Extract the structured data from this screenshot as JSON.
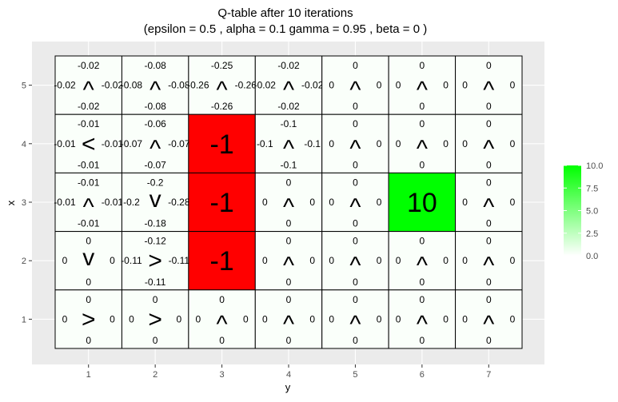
{
  "chart_data": {
    "type": "heatmap",
    "title_line1": "Q-table after  10  iterations",
    "title_line2": "(epsilon =  0.5 , alpha =  0.1 gamma =  0.95 , beta =  0 )",
    "xlabel": "y",
    "ylabel": "x",
    "x_ticks": [
      "1",
      "2",
      "3",
      "4",
      "5",
      "6",
      "7"
    ],
    "y_ticks": [
      "1",
      "2",
      "3",
      "4",
      "5"
    ],
    "legend": {
      "ticks": [
        "10.0",
        "7.5",
        "5.0",
        "2.5",
        "0.0"
      ],
      "range": [
        0,
        10
      ],
      "low_color": "#ffffff",
      "high_color": "#00ff00"
    },
    "negative_color": "#ff0000",
    "cells": [
      {
        "x": 5,
        "y": 1,
        "up": "-0.02",
        "down": "-0.02",
        "left": "-0.02",
        "right": "-0.02",
        "arrow": "^"
      },
      {
        "x": 5,
        "y": 2,
        "up": "-0.08",
        "down": "-0.08",
        "left": "-0.08",
        "right": "-0.08",
        "arrow": "^"
      },
      {
        "x": 5,
        "y": 3,
        "up": "-0.25",
        "down": "-0.26",
        "left": "-0.26",
        "right": "-0.26",
        "arrow": "^"
      },
      {
        "x": 5,
        "y": 4,
        "up": "-0.02",
        "down": "-0.02",
        "left": "-0.02",
        "right": "-0.02",
        "arrow": "^"
      },
      {
        "x": 5,
        "y": 5,
        "up": "0",
        "down": "0",
        "left": "0",
        "right": "0",
        "arrow": "^"
      },
      {
        "x": 5,
        "y": 6,
        "up": "0",
        "down": "0",
        "left": "0",
        "right": "0",
        "arrow": "^"
      },
      {
        "x": 5,
        "y": 7,
        "up": "0",
        "down": "0",
        "left": "0",
        "right": "0",
        "arrow": "^"
      },
      {
        "x": 4,
        "y": 1,
        "up": "-0.01",
        "down": "-0.01",
        "left": "-0.01",
        "right": "-0.01",
        "arrow": "<"
      },
      {
        "x": 4,
        "y": 2,
        "up": "-0.06",
        "down": "-0.07",
        "left": "-0.07",
        "right": "-0.07",
        "arrow": "^"
      },
      {
        "x": 4,
        "y": 3,
        "value": "-1"
      },
      {
        "x": 4,
        "y": 4,
        "up": "-0.1",
        "down": "-0.1",
        "left": "-0.1",
        "right": "-0.1",
        "arrow": "^"
      },
      {
        "x": 4,
        "y": 5,
        "up": "0",
        "down": "0",
        "left": "0",
        "right": "0",
        "arrow": "^"
      },
      {
        "x": 4,
        "y": 6,
        "up": "0",
        "down": "0",
        "left": "0",
        "right": "0",
        "arrow": "^"
      },
      {
        "x": 4,
        "y": 7,
        "up": "0",
        "down": "0",
        "left": "0",
        "right": "0",
        "arrow": "^"
      },
      {
        "x": 3,
        "y": 1,
        "up": "-0.01",
        "down": "-0.01",
        "left": "-0.01",
        "right": "-0.01",
        "arrow": "^"
      },
      {
        "x": 3,
        "y": 2,
        "up": "-0.2",
        "down": "-0.18",
        "left": "-0.2",
        "right": "-0.28",
        "arrow": "v"
      },
      {
        "x": 3,
        "y": 3,
        "value": "-1"
      },
      {
        "x": 3,
        "y": 4,
        "up": "0",
        "down": "0",
        "left": "0",
        "right": "0",
        "arrow": "^"
      },
      {
        "x": 3,
        "y": 5,
        "up": "0",
        "down": "0",
        "left": "0",
        "right": "0",
        "arrow": "^"
      },
      {
        "x": 3,
        "y": 6,
        "value": "10"
      },
      {
        "x": 3,
        "y": 7,
        "up": "0",
        "down": "0",
        "left": "0",
        "right": "0",
        "arrow": "^"
      },
      {
        "x": 2,
        "y": 1,
        "up": "0",
        "down": "0",
        "left": "0",
        "right": "0",
        "arrow": "v"
      },
      {
        "x": 2,
        "y": 2,
        "up": "-0.12",
        "down": "-0.11",
        "left": "-0.11",
        "right": "-0.11",
        "arrow": ">"
      },
      {
        "x": 2,
        "y": 3,
        "value": "-1"
      },
      {
        "x": 2,
        "y": 4,
        "up": "0",
        "down": "0",
        "left": "0",
        "right": "0",
        "arrow": "^"
      },
      {
        "x": 2,
        "y": 5,
        "up": "0",
        "down": "0",
        "left": "0",
        "right": "0",
        "arrow": "^"
      },
      {
        "x": 2,
        "y": 6,
        "up": "0",
        "down": "0",
        "left": "0",
        "right": "0",
        "arrow": "^"
      },
      {
        "x": 2,
        "y": 7,
        "up": "0",
        "down": "0",
        "left": "0",
        "right": "0",
        "arrow": "^"
      },
      {
        "x": 1,
        "y": 1,
        "up": "0",
        "down": "0",
        "left": "0",
        "right": "0",
        "arrow": ">"
      },
      {
        "x": 1,
        "y": 2,
        "up": "0",
        "down": "0",
        "left": "0",
        "right": "0",
        "arrow": ">"
      },
      {
        "x": 1,
        "y": 3,
        "up": "0",
        "down": "0",
        "left": "0",
        "right": "0",
        "arrow": "^"
      },
      {
        "x": 1,
        "y": 4,
        "up": "0",
        "down": "0",
        "left": "0",
        "right": "0",
        "arrow": "^"
      },
      {
        "x": 1,
        "y": 5,
        "up": "0",
        "down": "0",
        "left": "0",
        "right": "0",
        "arrow": "^"
      },
      {
        "x": 1,
        "y": 6,
        "up": "0",
        "down": "0",
        "left": "0",
        "right": "0",
        "arrow": "^"
      },
      {
        "x": 1,
        "y": 7,
        "up": "0",
        "down": "0",
        "left": "0",
        "right": "0",
        "arrow": "^"
      }
    ]
  }
}
